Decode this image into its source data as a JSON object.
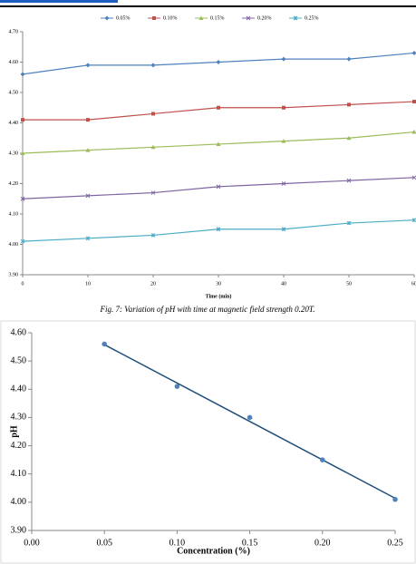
{
  "chart_data": [
    {
      "type": "line",
      "x_label": "Time (min)",
      "x": [
        0,
        10,
        20,
        30,
        40,
        50,
        60
      ],
      "xlim": [
        0,
        60
      ],
      "xticks": [
        0,
        10,
        20,
        30,
        40,
        50,
        60
      ],
      "ylim": [
        3.9,
        4.7
      ],
      "yticks": [
        {
          "value": 3.9,
          "label": "3.90"
        },
        {
          "value": 4.0,
          "label": "4.00"
        },
        {
          "value": 4.1,
          "label": "4.10"
        },
        {
          "value": 4.2,
          "label": "4.20"
        },
        {
          "value": 4.3,
          "label": "4.30"
        },
        {
          "value": 4.4,
          "label": "4.40"
        },
        {
          "value": 4.5,
          "label": "4.50"
        },
        {
          "value": 4.6,
          "label": "4.60"
        },
        {
          "value": 4.7,
          "label": "4.70"
        }
      ],
      "legend": "top",
      "series": [
        {
          "name": "0.05%",
          "color": "#4f81bd",
          "values": [
            4.56,
            4.59,
            4.59,
            4.6,
            4.61,
            4.61,
            4.63
          ]
        },
        {
          "name": "0.10%",
          "color": "#c0504d",
          "values": [
            4.41,
            4.41,
            4.43,
            4.45,
            4.45,
            4.46,
            4.47
          ]
        },
        {
          "name": "0.15%",
          "color": "#9bbb59",
          "values": [
            4.3,
            4.31,
            4.32,
            4.33,
            4.34,
            4.35,
            4.37
          ]
        },
        {
          "name": "0.20%",
          "color": "#8064a2",
          "values": [
            4.15,
            4.16,
            4.17,
            4.19,
            4.2,
            4.21,
            4.22
          ]
        },
        {
          "name": "0.25%",
          "color": "#4bacc6",
          "values": [
            4.01,
            4.02,
            4.03,
            4.05,
            4.05,
            4.07,
            4.08
          ]
        }
      ]
    },
    {
      "type": "scatter",
      "x_label": "Concentration (%)",
      "y_label": "pH",
      "x": [
        0.05,
        0.1,
        0.15,
        0.2,
        0.25
      ],
      "values": [
        4.56,
        4.41,
        4.3,
        4.15,
        4.01
      ],
      "color": "#4f81bd",
      "trendline_color": "#1f4e79",
      "trendline": true,
      "xlim": [
        0,
        0.25
      ],
      "xticks": [
        {
          "value": 0,
          "label": "0.00"
        },
        {
          "value": 0.05,
          "label": "0.05"
        },
        {
          "value": 0.1,
          "label": "0.10"
        },
        {
          "value": 0.15,
          "label": "0.15"
        },
        {
          "value": 0.2,
          "label": "0.20"
        },
        {
          "value": 0.25,
          "label": "0.25"
        }
      ],
      "ylim": [
        3.9,
        4.6
      ],
      "yticks": [
        {
          "value": 3.9,
          "label": "3.90"
        },
        {
          "value": 4.0,
          "label": "4.00"
        },
        {
          "value": 4.1,
          "label": "4.10"
        },
        {
          "value": 4.2,
          "label": "4.20"
        },
        {
          "value": 4.3,
          "label": "4.30"
        },
        {
          "value": 4.4,
          "label": "4.40"
        },
        {
          "value": 4.5,
          "label": "4.50"
        },
        {
          "value": 4.6,
          "label": "4.60"
        }
      ]
    }
  ],
  "figure_caption": "Fig. 7: Variation of pH with time at magnetic field strength 0.20T."
}
